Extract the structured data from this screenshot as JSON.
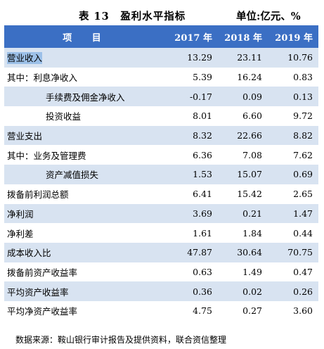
{
  "caption": {
    "title": "表 13　盈利水平指标",
    "unit": "单位:亿元、%"
  },
  "table": {
    "headers": [
      "项 目",
      "2017 年",
      "2018 年",
      "2019 年"
    ],
    "rows": [
      {
        "item": "营业收入",
        "v2017": "13.29",
        "v2018": "23.11",
        "v2019": "10.76"
      },
      {
        "item": "其中：利息净收入",
        "v2017": "5.39",
        "v2018": "16.24",
        "v2019": "0.83"
      },
      {
        "item": "手续费及佣金净收入",
        "v2017": "-0.17",
        "v2018": "0.09",
        "v2019": "0.13"
      },
      {
        "item": "投资收益",
        "v2017": "8.01",
        "v2018": "6.60",
        "v2019": "9.72"
      },
      {
        "item": "营业支出",
        "v2017": "8.32",
        "v2018": "22.66",
        "v2019": "8.82"
      },
      {
        "item": "其中：业务及管理费",
        "v2017": "6.36",
        "v2018": "7.08",
        "v2019": "7.62"
      },
      {
        "item": "资产减值损失",
        "v2017": "1.53",
        "v2018": "15.07",
        "v2019": "0.69"
      },
      {
        "item": "拨备前利润总额",
        "v2017": "6.41",
        "v2018": "15.42",
        "v2019": "2.65"
      },
      {
        "item": "净利润",
        "v2017": "3.69",
        "v2018": "0.21",
        "v2019": "1.47"
      },
      {
        "item": "净利差",
        "v2017": "1.61",
        "v2018": "1.84",
        "v2019": "0.44"
      },
      {
        "item": "成本收入比",
        "v2017": "47.87",
        "v2018": "30.64",
        "v2019": "70.75"
      },
      {
        "item": "拨备前资产收益率",
        "v2017": "0.63",
        "v2018": "1.49",
        "v2019": "0.47"
      },
      {
        "item": "平均资产收益率",
        "v2017": "0.36",
        "v2018": "0.02",
        "v2019": "0.26"
      },
      {
        "item": "平均净资产收益率",
        "v2017": "4.75",
        "v2018": "0.27",
        "v2019": "3.60"
      }
    ]
  },
  "source": "数据来源：鞍山银行审计报告及提供资料，联合资信整理",
  "colors": {
    "header_bg": "#3b6fc4",
    "header_text": "#ffffff",
    "stripe_bg": "#d8e3f1",
    "highlight_bg": "#9cc0e8"
  }
}
